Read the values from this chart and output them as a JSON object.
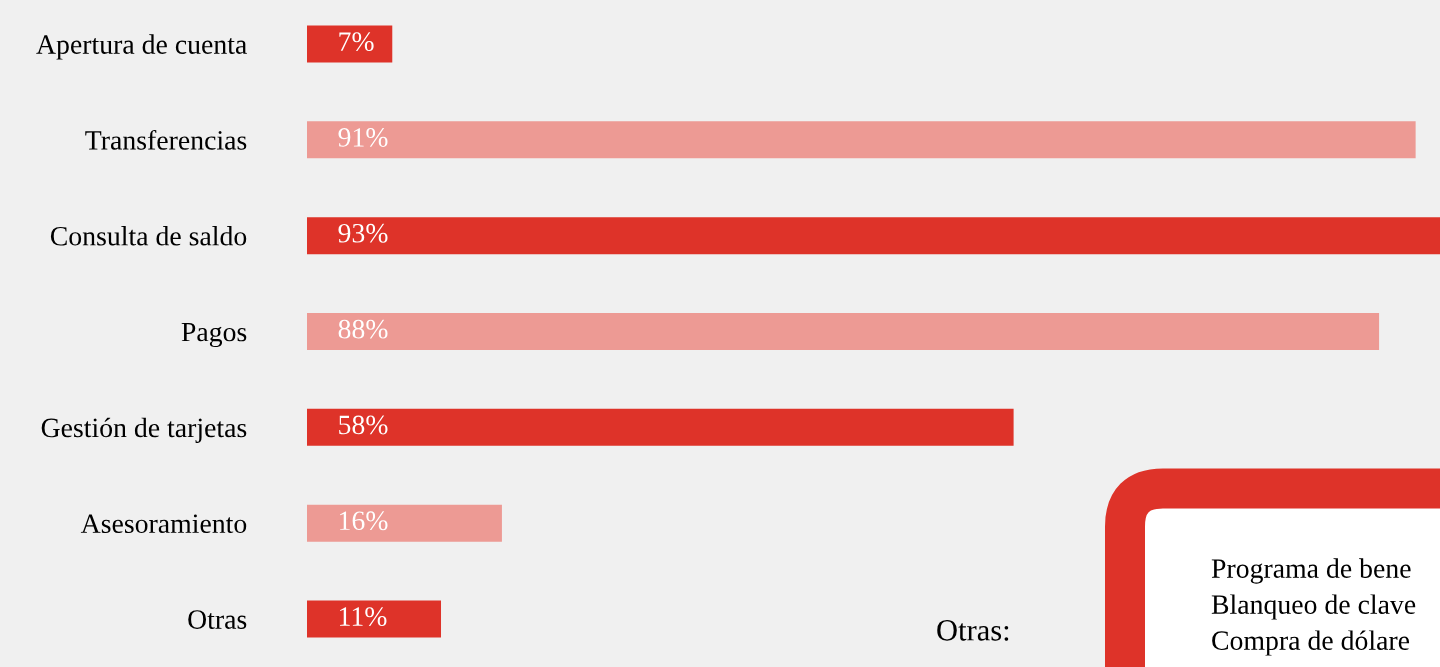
{
  "chart_data": {
    "type": "bar",
    "orientation": "horizontal",
    "categories": [
      "Apertura de cuenta",
      "Transferencias",
      "Consulta de saldo",
      "Pagos",
      "Gestión de tarjetas",
      "Asesoramiento",
      "Otras"
    ],
    "values": [
      7,
      91,
      93,
      88,
      58,
      16,
      11
    ],
    "value_labels": [
      "7%",
      "91%",
      "93%",
      "88%",
      "58%",
      "16%",
      "11%"
    ],
    "colors": [
      "#de3329",
      "#ed9a94",
      "#de3329",
      "#ed9a94",
      "#de3329",
      "#ed9a94",
      "#de3329"
    ],
    "xlim": [
      0,
      93
    ],
    "tick_labels": "y",
    "grid": false,
    "legend": false,
    "annotations": [
      "Otras:",
      "Programa de bene",
      "Blanqueo de clave",
      "Compra de dólare"
    ]
  }
}
